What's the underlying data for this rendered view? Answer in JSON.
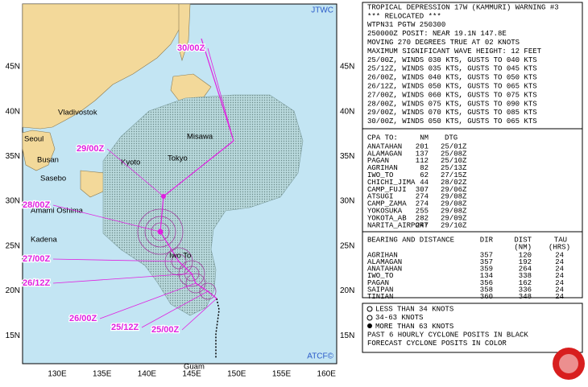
{
  "map": {
    "source": "JTWC",
    "credit": "ATCF©",
    "lat_labels": [
      "45N",
      "40N",
      "35N",
      "30N",
      "25N",
      "20N",
      "15N"
    ],
    "lon_labels": [
      "130E",
      "135E",
      "140E",
      "145E",
      "150E",
      "155E",
      "160E"
    ],
    "places": [
      "Vladivostok",
      "Misawa",
      "Seoul",
      "Busan",
      "Kyoto",
      "Tokyo",
      "Sasebo",
      "Amami Oshima",
      "Kadena",
      "Iwo To",
      "Guam"
    ],
    "forecast_labels": [
      "30/00Z",
      "29/00Z",
      "28/00Z",
      "27/00Z",
      "26/12Z",
      "26/00Z",
      "25/12Z",
      "25/00Z"
    ]
  },
  "warning": {
    "lines": [
      "TROPICAL DEPRESSION 17W (KAMMURI) WARNING #3",
      "*** RELOCATED ***",
      "WTPN31 PGTW 250300",
      "250000Z POSIT: NEAR 19.1N 147.8E",
      "MOVING 270 DEGREES TRUE AT 02 KNOTS",
      "MAXIMUM SIGNIFICANT WAVE HEIGHT: 12 FEET",
      "25/00Z, WINDS 030 KTS, GUSTS TO 040 KTS",
      "25/12Z, WINDS 035 KTS, GUSTS TO 045 KTS",
      "26/00Z, WINDS 040 KTS, GUSTS TO 050 KTS",
      "26/12Z, WINDS 050 KTS, GUSTS TO 065 KTS",
      "27/00Z, WINDS 060 KTS, GUSTS TO 075 KTS",
      "28/00Z, WINDS 075 KTS, GUSTS TO 090 KTS",
      "29/00Z, WINDS 070 KTS, GUSTS TO 085 KTS",
      "30/00Z, WINDS 050 KTS, GUSTS TO 065 KTS"
    ]
  },
  "cpa": {
    "header": [
      "CPA TO:",
      "NM",
      "DTG"
    ],
    "rows": [
      [
        "ANATAHAN",
        "201",
        "25/01Z"
      ],
      [
        "ALAMAGAN",
        "137",
        "25/08Z"
      ],
      [
        "PAGAN",
        "112",
        "25/10Z"
      ],
      [
        "AGRIHAN",
        "82",
        "25/13Z"
      ],
      [
        "IWO_TO",
        "62",
        "27/15Z"
      ],
      [
        "CHICHI_JIMA",
        "44",
        "28/02Z"
      ],
      [
        "CAMP_FUJI",
        "307",
        "29/06Z"
      ],
      [
        "ATSUGI",
        "274",
        "29/08Z"
      ],
      [
        "CAMP_ZAMA",
        "274",
        "29/08Z"
      ],
      [
        "YOKOSUKA",
        "255",
        "29/08Z"
      ],
      [
        "YOKOTA_AB",
        "282",
        "29/09Z"
      ],
      [
        "NARITA_AIRPORT",
        "247",
        "29/10Z"
      ]
    ]
  },
  "bearing": {
    "header": [
      "BEARING AND DISTANCE",
      "DIR",
      "DIST",
      "TAU"
    ],
    "units": [
      "(NM)",
      "(HRS)"
    ],
    "rows": [
      [
        "AGRIHAN",
        "357",
        "120",
        "24"
      ],
      [
        "ALAMAGAN",
        "357",
        "192",
        "24"
      ],
      [
        "ANATAHAN",
        "359",
        "264",
        "24"
      ],
      [
        "IWO_TO",
        "134",
        "338",
        "24"
      ],
      [
        "PAGAN",
        "356",
        "162",
        "24"
      ],
      [
        "SAIPAN",
        "358",
        "336",
        "24"
      ],
      [
        "TINIAN",
        "360",
        "348",
        "24"
      ]
    ]
  },
  "legend": {
    "lines": [
      "LESS THAN 34 KNOTS",
      "34-63 KNOTS",
      "MORE THAN 63 KNOTS",
      "PAST 6 HOURLY CYCLONE POSITS IN BLACK",
      "FORECAST CYCLONE POSITS IN COLOR"
    ]
  }
}
